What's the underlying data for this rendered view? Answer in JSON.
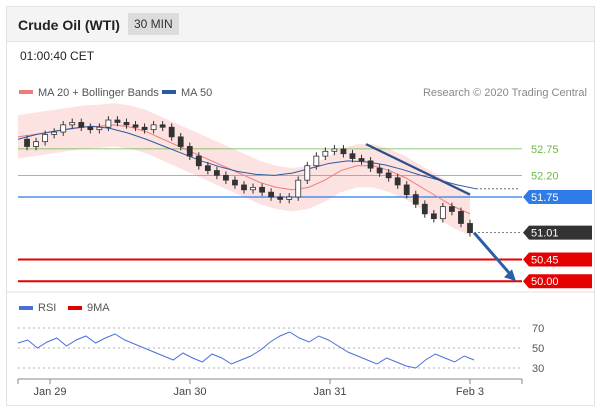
{
  "header": {
    "title": "Crude Oil (WTI)",
    "interval": "30 MIN",
    "timestamp": "01:00:40 CET"
  },
  "legend": {
    "bollinger": {
      "label": "MA 20 + Bollinger Bands",
      "color": "#f07b7b"
    },
    "ma50": {
      "label": "MA 50",
      "color": "#2c5aa0"
    },
    "credit": "Research © 2020 Trading Central"
  },
  "rsi_legend": {
    "rsi": {
      "label": "RSI",
      "color": "#4a6fdc"
    },
    "ma9": {
      "label": "9MA",
      "color": "#e00000"
    }
  },
  "colors": {
    "resistance": "#6bb84a",
    "pivot": "#2f7be8",
    "support": "#e60000",
    "price_tag": "#333333",
    "band_fill": "#fde2e2",
    "candle": "#333333"
  },
  "chart_data": [
    {
      "type": "candlestick",
      "x_ticks": [
        "Jan 29",
        "Jan 30",
        "Jan 31",
        "Feb 3"
      ],
      "ylim": [
        49.9,
        53.6
      ],
      "levels": [
        {
          "value": 52.75,
          "label": "52.75",
          "kind": "resistance"
        },
        {
          "value": 52.2,
          "label": "52.20",
          "kind": "resistance"
        },
        {
          "value": 51.75,
          "label": "51.75",
          "kind": "pivot"
        },
        {
          "value": 51.01,
          "label": "51.01",
          "kind": "last_price"
        },
        {
          "value": 50.45,
          "label": "50.45",
          "kind": "support"
        },
        {
          "value": 50.0,
          "label": "50.00",
          "kind": "support"
        }
      ],
      "close_series": [
        52.95,
        52.8,
        52.9,
        53.05,
        53.1,
        53.25,
        53.3,
        53.2,
        53.15,
        53.2,
        53.35,
        53.3,
        53.25,
        53.2,
        53.15,
        53.25,
        53.2,
        53.0,
        52.8,
        52.6,
        52.4,
        52.3,
        52.2,
        52.1,
        52.0,
        51.9,
        51.95,
        51.85,
        51.75,
        51.7,
        51.75,
        52.1,
        52.4,
        52.6,
        52.7,
        52.75,
        52.65,
        52.55,
        52.5,
        52.35,
        52.25,
        52.15,
        52.0,
        51.8,
        51.6,
        51.4,
        51.3,
        51.55,
        51.45,
        51.2,
        51.01
      ],
      "ma20": [
        53.0,
        53.05,
        53.1,
        53.15,
        53.2,
        53.22,
        53.25,
        53.2,
        53.1,
        52.95,
        52.8,
        52.65,
        52.5,
        52.35,
        52.2,
        52.05,
        51.95,
        51.9,
        51.95,
        52.1,
        52.3,
        52.4,
        52.4,
        52.3,
        52.15,
        51.95,
        51.75,
        51.55,
        51.4
      ],
      "ma50": [
        52.95,
        53.05,
        53.12,
        53.18,
        53.22,
        53.18,
        53.08,
        52.95,
        52.8,
        52.65,
        52.5,
        52.38,
        52.28,
        52.22,
        52.2,
        52.25,
        52.35,
        52.45,
        52.5,
        52.48,
        52.42,
        52.32,
        52.2,
        52.1,
        52.0,
        51.92
      ],
      "forecast_arrow": {
        "from": 51.01,
        "to": 50.0
      },
      "trendline": {
        "from": 52.85,
        "to": 51.8
      }
    },
    {
      "type": "line",
      "title": "RSI",
      "ylim": [
        20,
        80
      ],
      "y_ticks": [
        70,
        50,
        30
      ],
      "rsi": [
        55,
        58,
        50,
        56,
        60,
        52,
        58,
        62,
        55,
        60,
        64,
        58,
        54,
        50,
        46,
        42,
        38,
        45,
        40,
        36,
        44,
        40,
        34,
        38,
        42,
        48,
        56,
        62,
        66,
        60,
        56,
        62,
        58,
        52,
        46,
        42,
        38,
        34,
        40,
        36,
        32,
        30,
        38,
        44,
        40,
        36,
        42,
        38
      ]
    }
  ]
}
